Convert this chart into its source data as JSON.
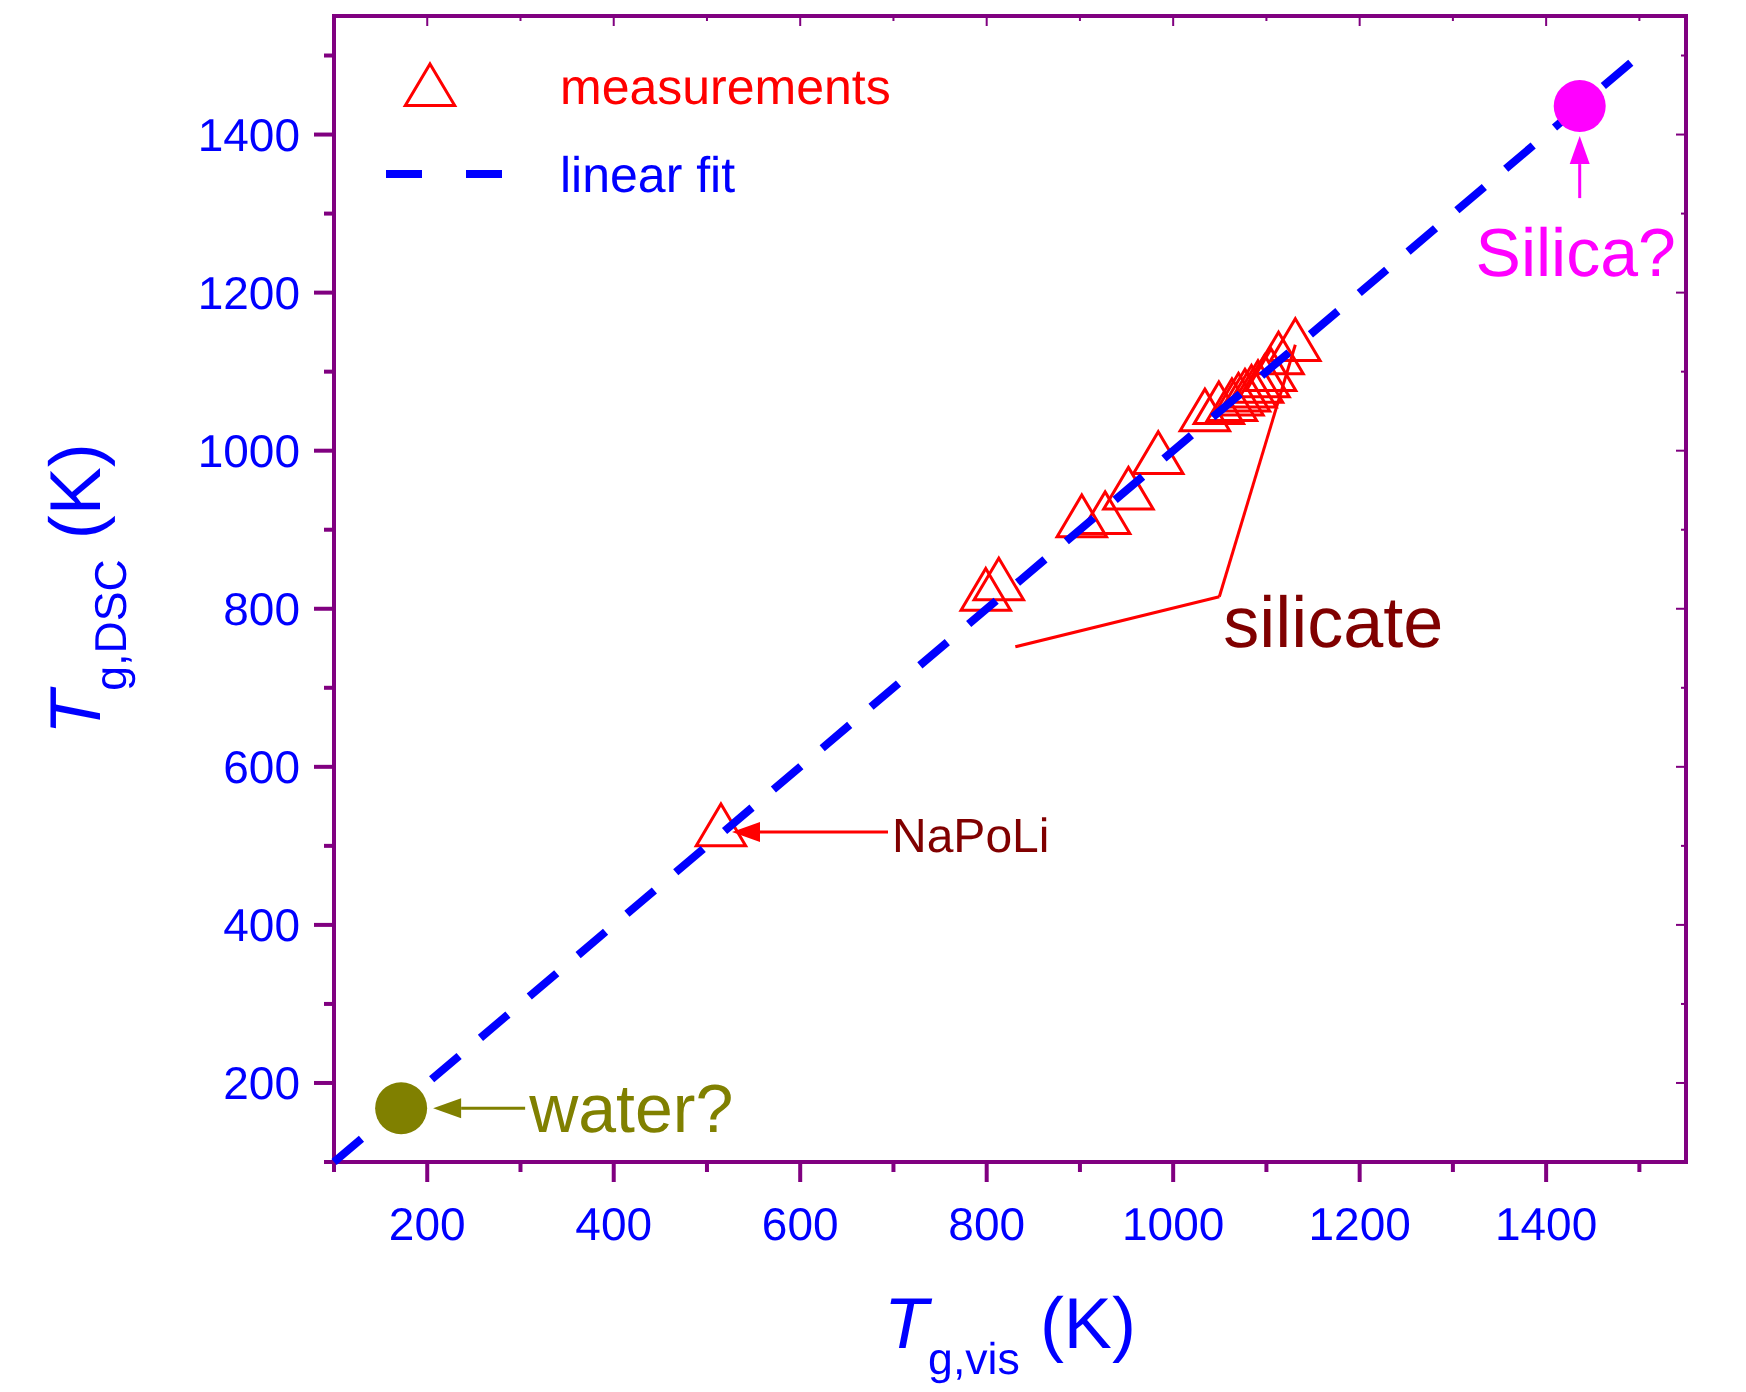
{
  "chart_data": {
    "type": "scatter",
    "xlabel": "T$_{g,vis}$ (K)",
    "ylabel": "T$_{g,DSC}$ (K)",
    "xlim": [
      100,
      1550
    ],
    "ylim": [
      100,
      1550
    ],
    "xticks": [
      {
        "value": 100,
        "label": null
      },
      200,
      {
        "value": 300,
        "label": null
      },
      400,
      {
        "value": 500,
        "label": null
      },
      600,
      {
        "value": 700,
        "label": null
      },
      800,
      {
        "value": 900,
        "label": null
      },
      1000,
      {
        "value": 1100,
        "label": null
      },
      1200,
      {
        "value": 1300,
        "label": null
      },
      1400,
      {
        "value": 1500,
        "label": null
      }
    ],
    "yticks": [
      {
        "value": 100,
        "label": null
      },
      200,
      {
        "value": 300,
        "label": null
      },
      400,
      {
        "value": 500,
        "label": null
      },
      600,
      {
        "value": 700,
        "label": null
      },
      800,
      {
        "value": 900,
        "label": null
      },
      1000,
      {
        "value": 1100,
        "label": null
      },
      1200,
      {
        "value": 1300,
        "label": null
      },
      1400,
      {
        "value": 1500,
        "label": null
      }
    ],
    "grid": false,
    "legend": "top left",
    "series": [
      {
        "name": "measurements",
        "marker": "triangle",
        "color": "#ff0000",
        "x": [
          515,
          799,
          813,
          902,
          927,
          952,
          984,
          1034,
          1049,
          1063,
          1070,
          1077,
          1084,
          1091,
          1098,
          1105,
          1113,
          1131
        ],
        "values": [
          520,
          818,
          831,
          911,
          915,
          946,
          991,
          1045,
          1054,
          1058,
          1065,
          1070,
          1075,
          1081,
          1088,
          1096,
          1117,
          1134
        ]
      },
      {
        "name": "linear fit",
        "type": "line",
        "line_style": "dashed",
        "marker": "none",
        "color": "#0000ff",
        "x": [
          100,
          1500
        ],
        "values": [
          100,
          1500
        ]
      },
      {
        "type": "scatter",
        "marker": "circle",
        "color": "#808000",
        "x": [
          172
        ],
        "values": [
          168
        ]
      },
      {
        "type": "scatter",
        "marker": "circle",
        "color": "#ff00ff",
        "x": [
          1436
        ],
        "values": [
          1436
        ]
      }
    ],
    "annotations": [
      {
        "text": "water?",
        "x": 172,
        "y": 168
      },
      "NaPoLi",
      {
        "text": "silicate",
        "x": 1131,
        "y": 1134
      },
      {
        "text": "Silica?",
        "x": 1436,
        "y": 1436
      }
    ]
  }
}
